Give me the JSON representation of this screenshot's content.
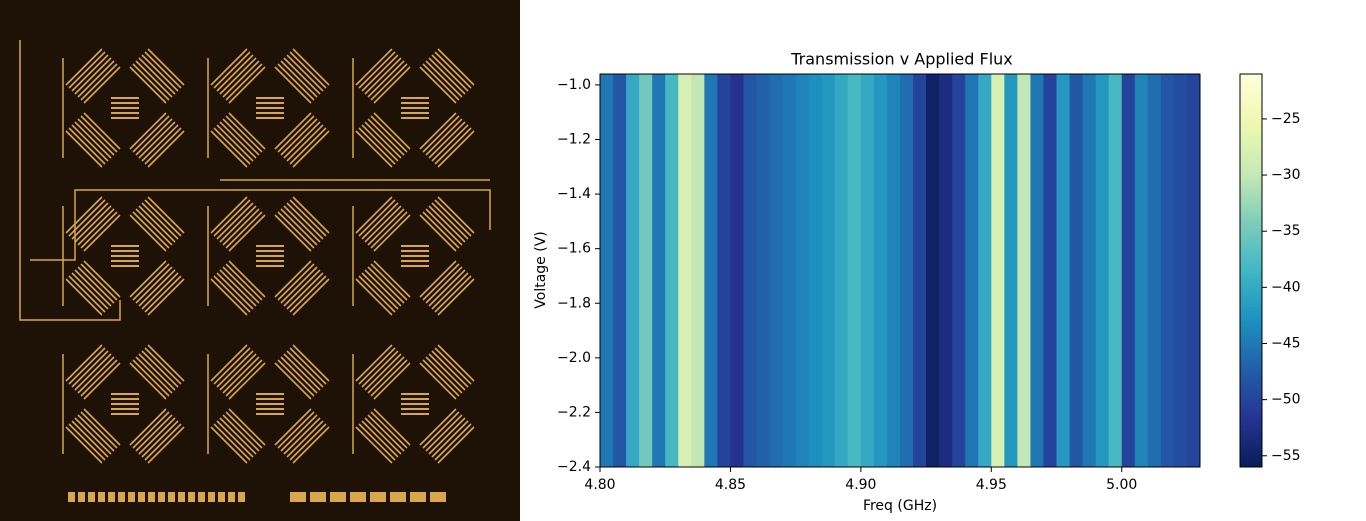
{
  "chart_data": {
    "type": "heatmap",
    "title": "Transmission v Applied Flux",
    "x_label": "Freq (GHz)",
    "y_label": "Voltage (V)",
    "x": [
      4.8025,
      4.8075,
      4.8125,
      4.8175,
      4.8225,
      4.8275,
      4.8325,
      4.8375,
      4.8425,
      4.8475,
      4.8525,
      4.8575,
      4.8625,
      4.8675,
      4.8725,
      4.8775,
      4.8825,
      4.8875,
      4.8925,
      4.8975,
      4.9025,
      4.9075,
      4.9125,
      4.9175,
      4.9225,
      4.9275,
      4.9325,
      4.9375,
      4.9425,
      4.9475,
      4.9525,
      4.9575,
      4.9625,
      4.9675,
      4.9725,
      4.9775,
      4.9825,
      4.9875,
      4.9925,
      4.9975,
      5.0025,
      5.0075,
      5.0125,
      5.0175,
      5.0225,
      5.0275
    ],
    "values": [
      -45,
      -48,
      -40,
      -35,
      -45,
      -38,
      -28,
      -30,
      -45,
      -50,
      -52,
      -48,
      -47,
      -46,
      -45,
      -44,
      -43,
      -42,
      -40,
      -38,
      -40,
      -42,
      -44,
      -46,
      -50,
      -55,
      -53,
      -50,
      -45,
      -40,
      -28,
      -42,
      -30,
      -45,
      -50,
      -42,
      -48,
      -45,
      -42,
      -38,
      -50,
      -44,
      -46,
      -48,
      -49,
      -50
    ],
    "xlim": [
      4.8,
      5.03
    ],
    "ylim": [
      -0.96,
      -2.4
    ],
    "xticks": [
      {
        "value": 4.8,
        "label": "4.80"
      },
      {
        "value": 4.85,
        "label": "4.85"
      },
      {
        "value": 4.9,
        "label": "4.90"
      },
      {
        "value": 4.95,
        "label": "4.95"
      },
      {
        "value": 5.0,
        "label": "5.00"
      }
    ],
    "yticks": [
      {
        "value": -1.0,
        "label": "−1.0"
      },
      {
        "value": -1.2,
        "label": "−1.2"
      },
      {
        "value": -1.4,
        "label": "−1.4"
      },
      {
        "value": -1.6,
        "label": "−1.6"
      },
      {
        "value": -1.8,
        "label": "−1.8"
      },
      {
        "value": -2.0,
        "label": "−2.0"
      },
      {
        "value": -2.2,
        "label": "−2.2"
      },
      {
        "value": -2.4,
        "label": "−2.4"
      }
    ],
    "colormap": "YlGnBu",
    "clim": [
      -56,
      -21
    ],
    "cticks": [
      {
        "value": -25,
        "label": "−25"
      },
      {
        "value": -30,
        "label": "−30"
      },
      {
        "value": -35,
        "label": "−35"
      },
      {
        "value": -40,
        "label": "−40"
      },
      {
        "value": -45,
        "label": "−45"
      },
      {
        "value": -50,
        "label": "−50"
      },
      {
        "value": -55,
        "label": "−55"
      }
    ]
  }
}
